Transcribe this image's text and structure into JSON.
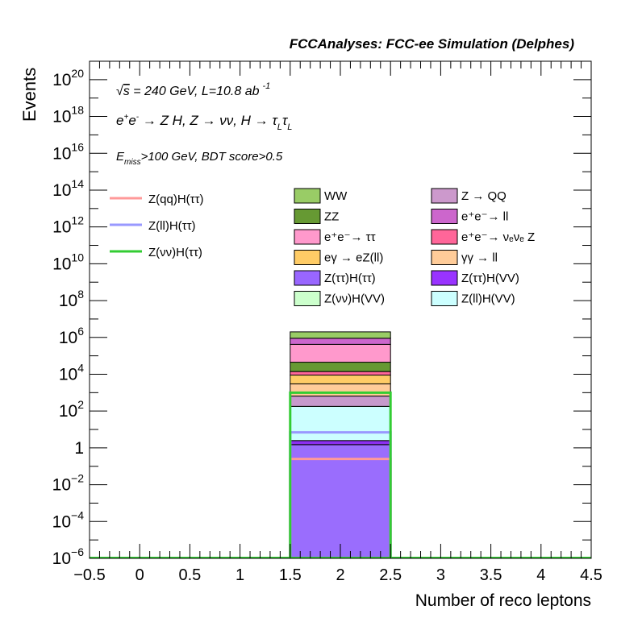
{
  "chart_data": {
    "type": "bar",
    "stacked": true,
    "title": "FCCAnalyses: FCC-ee Simulation (Delphes)",
    "xlabel": "Number of reco leptons",
    "ylabel": "Events",
    "xlim": [
      -0.5,
      4.5
    ],
    "ylim": [
      1e-06,
      1e+21
    ],
    "yscale": "log",
    "grid": false,
    "x_ticks": [
      "−0.5",
      "0",
      "0.5",
      "1",
      "1.5",
      "2",
      "2.5",
      "3",
      "3.5",
      "4",
      "4.5"
    ],
    "x_tick_values": [
      -0.5,
      0,
      0.5,
      1,
      1.5,
      2,
      2.5,
      3,
      3.5,
      4,
      4.5
    ],
    "y_ticks": [
      {
        "value": 1e-06,
        "base": "10",
        "exp": "−6"
      },
      {
        "value": 0.0001,
        "base": "10",
        "exp": "−4"
      },
      {
        "value": 0.01,
        "base": "10",
        "exp": "−2"
      },
      {
        "value": 1,
        "base": "1",
        "exp": ""
      },
      {
        "value": 100.0,
        "base": "10",
        "exp": "2"
      },
      {
        "value": 10000.0,
        "base": "10",
        "exp": "4"
      },
      {
        "value": 1000000.0,
        "base": "10",
        "exp": "6"
      },
      {
        "value": 100000000.0,
        "base": "10",
        "exp": "8"
      },
      {
        "value": 10000000000.0,
        "base": "10",
        "exp": "10"
      },
      {
        "value": 1000000000000.0,
        "base": "10",
        "exp": "12"
      },
      {
        "value": 100000000000000.0,
        "base": "10",
        "exp": "14"
      },
      {
        "value": 1e+16,
        "base": "10",
        "exp": "16"
      },
      {
        "value": 1e+18,
        "base": "10",
        "exp": "18"
      },
      {
        "value": 1e+20,
        "base": "10",
        "exp": "20"
      }
    ],
    "bin": [
      1.5,
      2.5
    ],
    "stack": [
      {
        "name": "Z(ττ)H(ττ)",
        "top": 1.5,
        "color": "#9a6dfd"
      },
      {
        "name": "Z(ττ)H(VV)",
        "top": 2.5,
        "color": "#8b2ff0"
      },
      {
        "name": "Z(ll)H(VV)",
        "top": 180,
        "color": "#ccffff"
      },
      {
        "name": "Z → QQ",
        "top": 650,
        "color": "#c799cc"
      },
      {
        "name": "γγ → ll",
        "top": 3000,
        "color": "#ffcc99"
      },
      {
        "name": "eγ → eZ(ll)",
        "top": 9000,
        "color": "#ffcc66"
      },
      {
        "name": "e⁺e⁻ → νₑνₑ Z",
        "top": 14000,
        "color": "#ff6699"
      },
      {
        "name": "ZZ",
        "top": 45000,
        "color": "#669933"
      },
      {
        "name": "e⁺e⁻ → ττ",
        "top": 420000,
        "color": "#ff99cc"
      },
      {
        "name": "e⁺e⁻ → ll",
        "top": 900000,
        "color": "#cc66cc"
      },
      {
        "name": "WW",
        "top": 2000000,
        "color": "#99cc66"
      }
    ],
    "signals": [
      {
        "name": "Z(qq)H(ττ)",
        "value": 0.25,
        "color": "#ff9999"
      },
      {
        "name": "Z(ll)H(ττ)",
        "value": 7,
        "color": "#9999ff"
      },
      {
        "name": "Z(νν)H(ττ)",
        "value": 1000,
        "color": "#33cc33"
      }
    ],
    "legend": {
      "placement": "upper-middle",
      "signals": [
        {
          "label": "Z(qq)H(ττ)",
          "color": "#ff9999"
        },
        {
          "label": "Z(ll)H(ττ)",
          "color": "#9999ff"
        },
        {
          "label": "Z(νν)H(ττ)",
          "color": "#33cc33"
        }
      ],
      "backgrounds": [
        {
          "label": "WW",
          "color": "#99cc66"
        },
        {
          "label": "Z → QQ",
          "color": "#cc99cc"
        },
        {
          "label": "ZZ",
          "color": "#669933"
        },
        {
          "label": "e⁺e⁻→ ll",
          "color": "#cc66cc"
        },
        {
          "label": "e⁺e⁻→ ττ",
          "color": "#ff99cc"
        },
        {
          "label": "e⁺e⁻→ νₑνₑ Z",
          "color": "#ff6699"
        },
        {
          "label": "eγ → eZ(ll)",
          "color": "#ffcc66"
        },
        {
          "label": "γγ → ll",
          "color": "#ffcc99"
        },
        {
          "label": "Z(ττ)H(ττ)",
          "color": "#9966ff"
        },
        {
          "label": "Z(ττ)H(VV)",
          "color": "#9933ff"
        },
        {
          "label": "Z(νν)H(VV)",
          "color": "#ccffcc"
        },
        {
          "label": "Z(ll)H(VV)",
          "color": "#ccffff"
        }
      ]
    },
    "annotations": {
      "line1": "√s = 240 GeV, L=10.8 ab⁻¹",
      "line2": "e⁺e⁻ → Z H, Z → νν, H → τLτL",
      "line3": "Emiss>100 GeV, BDT score>0.5"
    }
  }
}
